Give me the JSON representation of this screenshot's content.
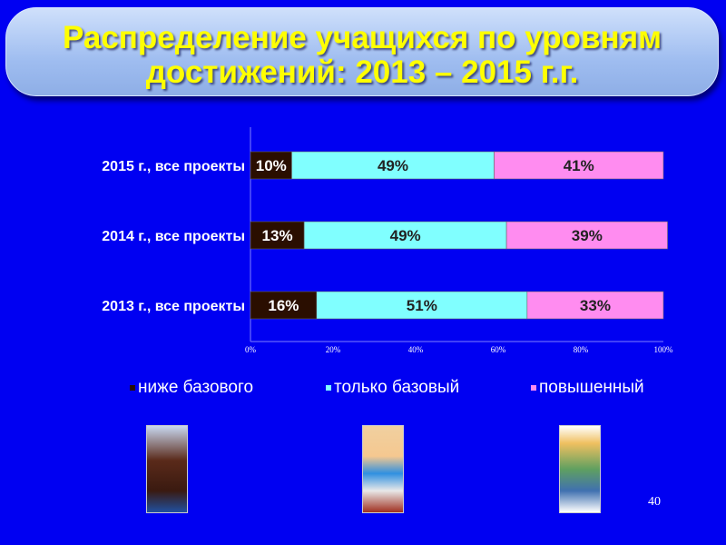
{
  "slide": {
    "title_line1": "Распределение учащихся по уровням",
    "title_line2": "достижений: 2013 – 2015 г.г.",
    "page_number": "40"
  },
  "chart_data": {
    "type": "bar",
    "orientation": "horizontal",
    "stacked": "percent",
    "categories": [
      "2015 г., все проекты",
      "2014 г., все проекты",
      "2013 г., все проекты"
    ],
    "series": [
      {
        "name": "ниже базового",
        "values": [
          10,
          13,
          16
        ],
        "labels": [
          "10%",
          "13%",
          "16%"
        ],
        "color": "#2a0e00"
      },
      {
        "name": "только базовый",
        "values": [
          49,
          49,
          51
        ],
        "labels": [
          "49%",
          "49%",
          "51%"
        ],
        "color": "#80ffff"
      },
      {
        "name": "повышенный",
        "values": [
          41,
          39,
          33
        ],
        "labels": [
          "41%",
          "39%",
          "33%"
        ],
        "color": "#ff8cf0"
      }
    ],
    "xlim": [
      0,
      100
    ],
    "x_ticks": [
      "0%",
      "20%",
      "40%",
      "60%",
      "80%",
      "100%"
    ],
    "grid": false,
    "legend_position": "bottom"
  },
  "colors": {
    "background": "#0000f2",
    "title_text": "#ffff00"
  }
}
